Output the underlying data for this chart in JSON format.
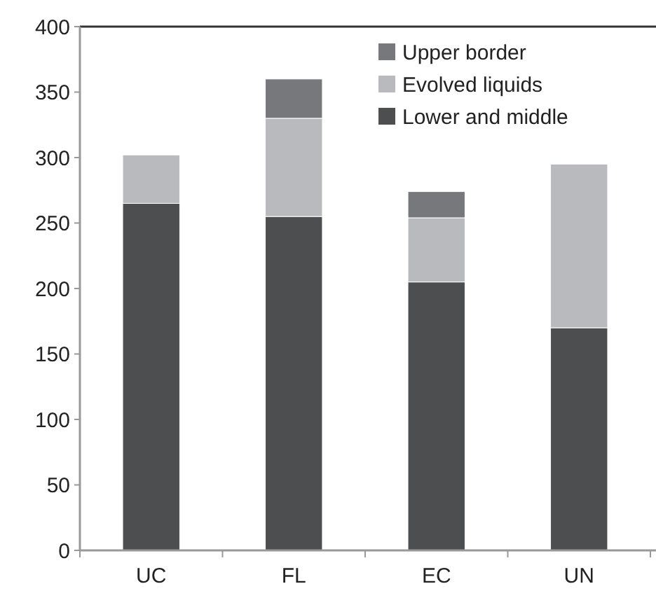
{
  "chart_data": {
    "type": "bar",
    "stacked": true,
    "categories": [
      "UC",
      "FL",
      "EC",
      "UN"
    ],
    "series": [
      {
        "name": "Lower and middle",
        "color": "#4d4e50",
        "values": [
          265,
          255,
          205,
          170
        ]
      },
      {
        "name": "Evolved liquids",
        "color": "#b9babd",
        "values": [
          37,
          75,
          49,
          125
        ]
      },
      {
        "name": "Upper border",
        "color": "#77787b",
        "values": [
          null,
          30,
          20,
          null
        ]
      }
    ],
    "ylim": [
      0,
      400
    ],
    "yticks": [
      0,
      50,
      100,
      150,
      200,
      250,
      300,
      350,
      400
    ],
    "grid": false,
    "legend": "top right"
  }
}
